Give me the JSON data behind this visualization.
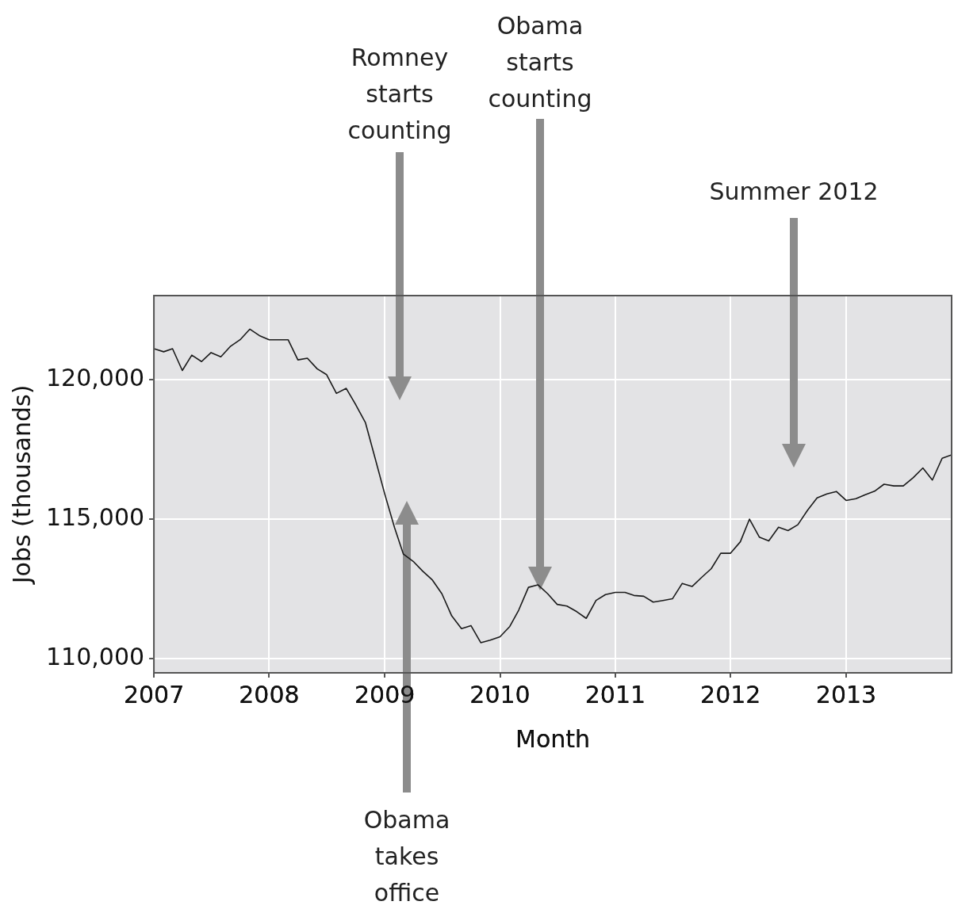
{
  "chart_data": {
    "type": "line",
    "xlabel": "Month",
    "ylabel": "Jobs (thousands)",
    "x": [
      "2007-01",
      "2007-02",
      "2007-03",
      "2007-04",
      "2007-05",
      "2007-06",
      "2007-07",
      "2007-08",
      "2007-09",
      "2007-10",
      "2007-11",
      "2007-12",
      "2008-01",
      "2008-02",
      "2008-03",
      "2008-04",
      "2008-05",
      "2008-06",
      "2008-07",
      "2008-08",
      "2008-09",
      "2008-10",
      "2008-11",
      "2008-12",
      "2009-01",
      "2009-02",
      "2009-03",
      "2009-04",
      "2009-05",
      "2009-06",
      "2009-07",
      "2009-08",
      "2009-09",
      "2009-10",
      "2009-11",
      "2009-12",
      "2010-01",
      "2010-02",
      "2010-03",
      "2010-04",
      "2010-05",
      "2010-06",
      "2010-07",
      "2010-08",
      "2010-09",
      "2010-10",
      "2010-11",
      "2010-12",
      "2011-01",
      "2011-02",
      "2011-03",
      "2011-04",
      "2011-05",
      "2011-06",
      "2011-07",
      "2011-08",
      "2011-09",
      "2011-10",
      "2011-11",
      "2011-12",
      "2012-01",
      "2012-02",
      "2012-03",
      "2012-04",
      "2012-05",
      "2012-06",
      "2012-07",
      "2012-08",
      "2012-09",
      "2012-10",
      "2012-11",
      "2012-12",
      "2013-01",
      "2013-02",
      "2013-03",
      "2013-04",
      "2013-05",
      "2013-06",
      "2013-07",
      "2013-08",
      "2013-09",
      "2013-10",
      "2013-11",
      "2013-12"
    ],
    "series": [
      {
        "color": "#1a1a1a",
        "values": [
          121100,
          120990,
          121100,
          120320,
          120870,
          120640,
          120960,
          120810,
          121190,
          121420,
          121800,
          121570,
          121420,
          121420,
          121420,
          120700,
          120760,
          120380,
          120170,
          119500,
          119680,
          119100,
          118450,
          117200,
          115900,
          114700,
          113750,
          113490,
          113140,
          112820,
          112330,
          111540,
          111080,
          111190,
          110580,
          110670,
          110790,
          111160,
          111740,
          112560,
          112650,
          112330,
          111950,
          111890,
          111690,
          111450,
          112090,
          112300,
          112380,
          112380,
          112270,
          112240,
          112030,
          112090,
          112150,
          112700,
          112590,
          112910,
          113230,
          113780,
          113780,
          114190,
          115000,
          114360,
          114220,
          114710,
          114590,
          114800,
          115320,
          115760,
          115900,
          115990,
          115670,
          115730,
          115870,
          116000,
          116250,
          116190,
          116190,
          116480,
          116830,
          116400,
          117180,
          117300
        ]
      }
    ],
    "xlim": [
      "2007-01",
      "2013-12"
    ],
    "xticks": [
      "2007",
      "2008",
      "2009",
      "2010",
      "2011",
      "2012",
      "2013"
    ],
    "ylim": [
      109500,
      123000
    ],
    "yticks": [
      {
        "value": 110000,
        "label": "110,000"
      },
      {
        "value": 115000,
        "label": "115,000"
      },
      {
        "value": 120000,
        "label": "120,000"
      }
    ],
    "grid": true,
    "legend": false,
    "marker": "none",
    "line_style": "solid",
    "annotations": [
      "Romney starts counting",
      "Obama takes office",
      "Obama starts counting",
      "Summer 2012"
    ]
  }
}
